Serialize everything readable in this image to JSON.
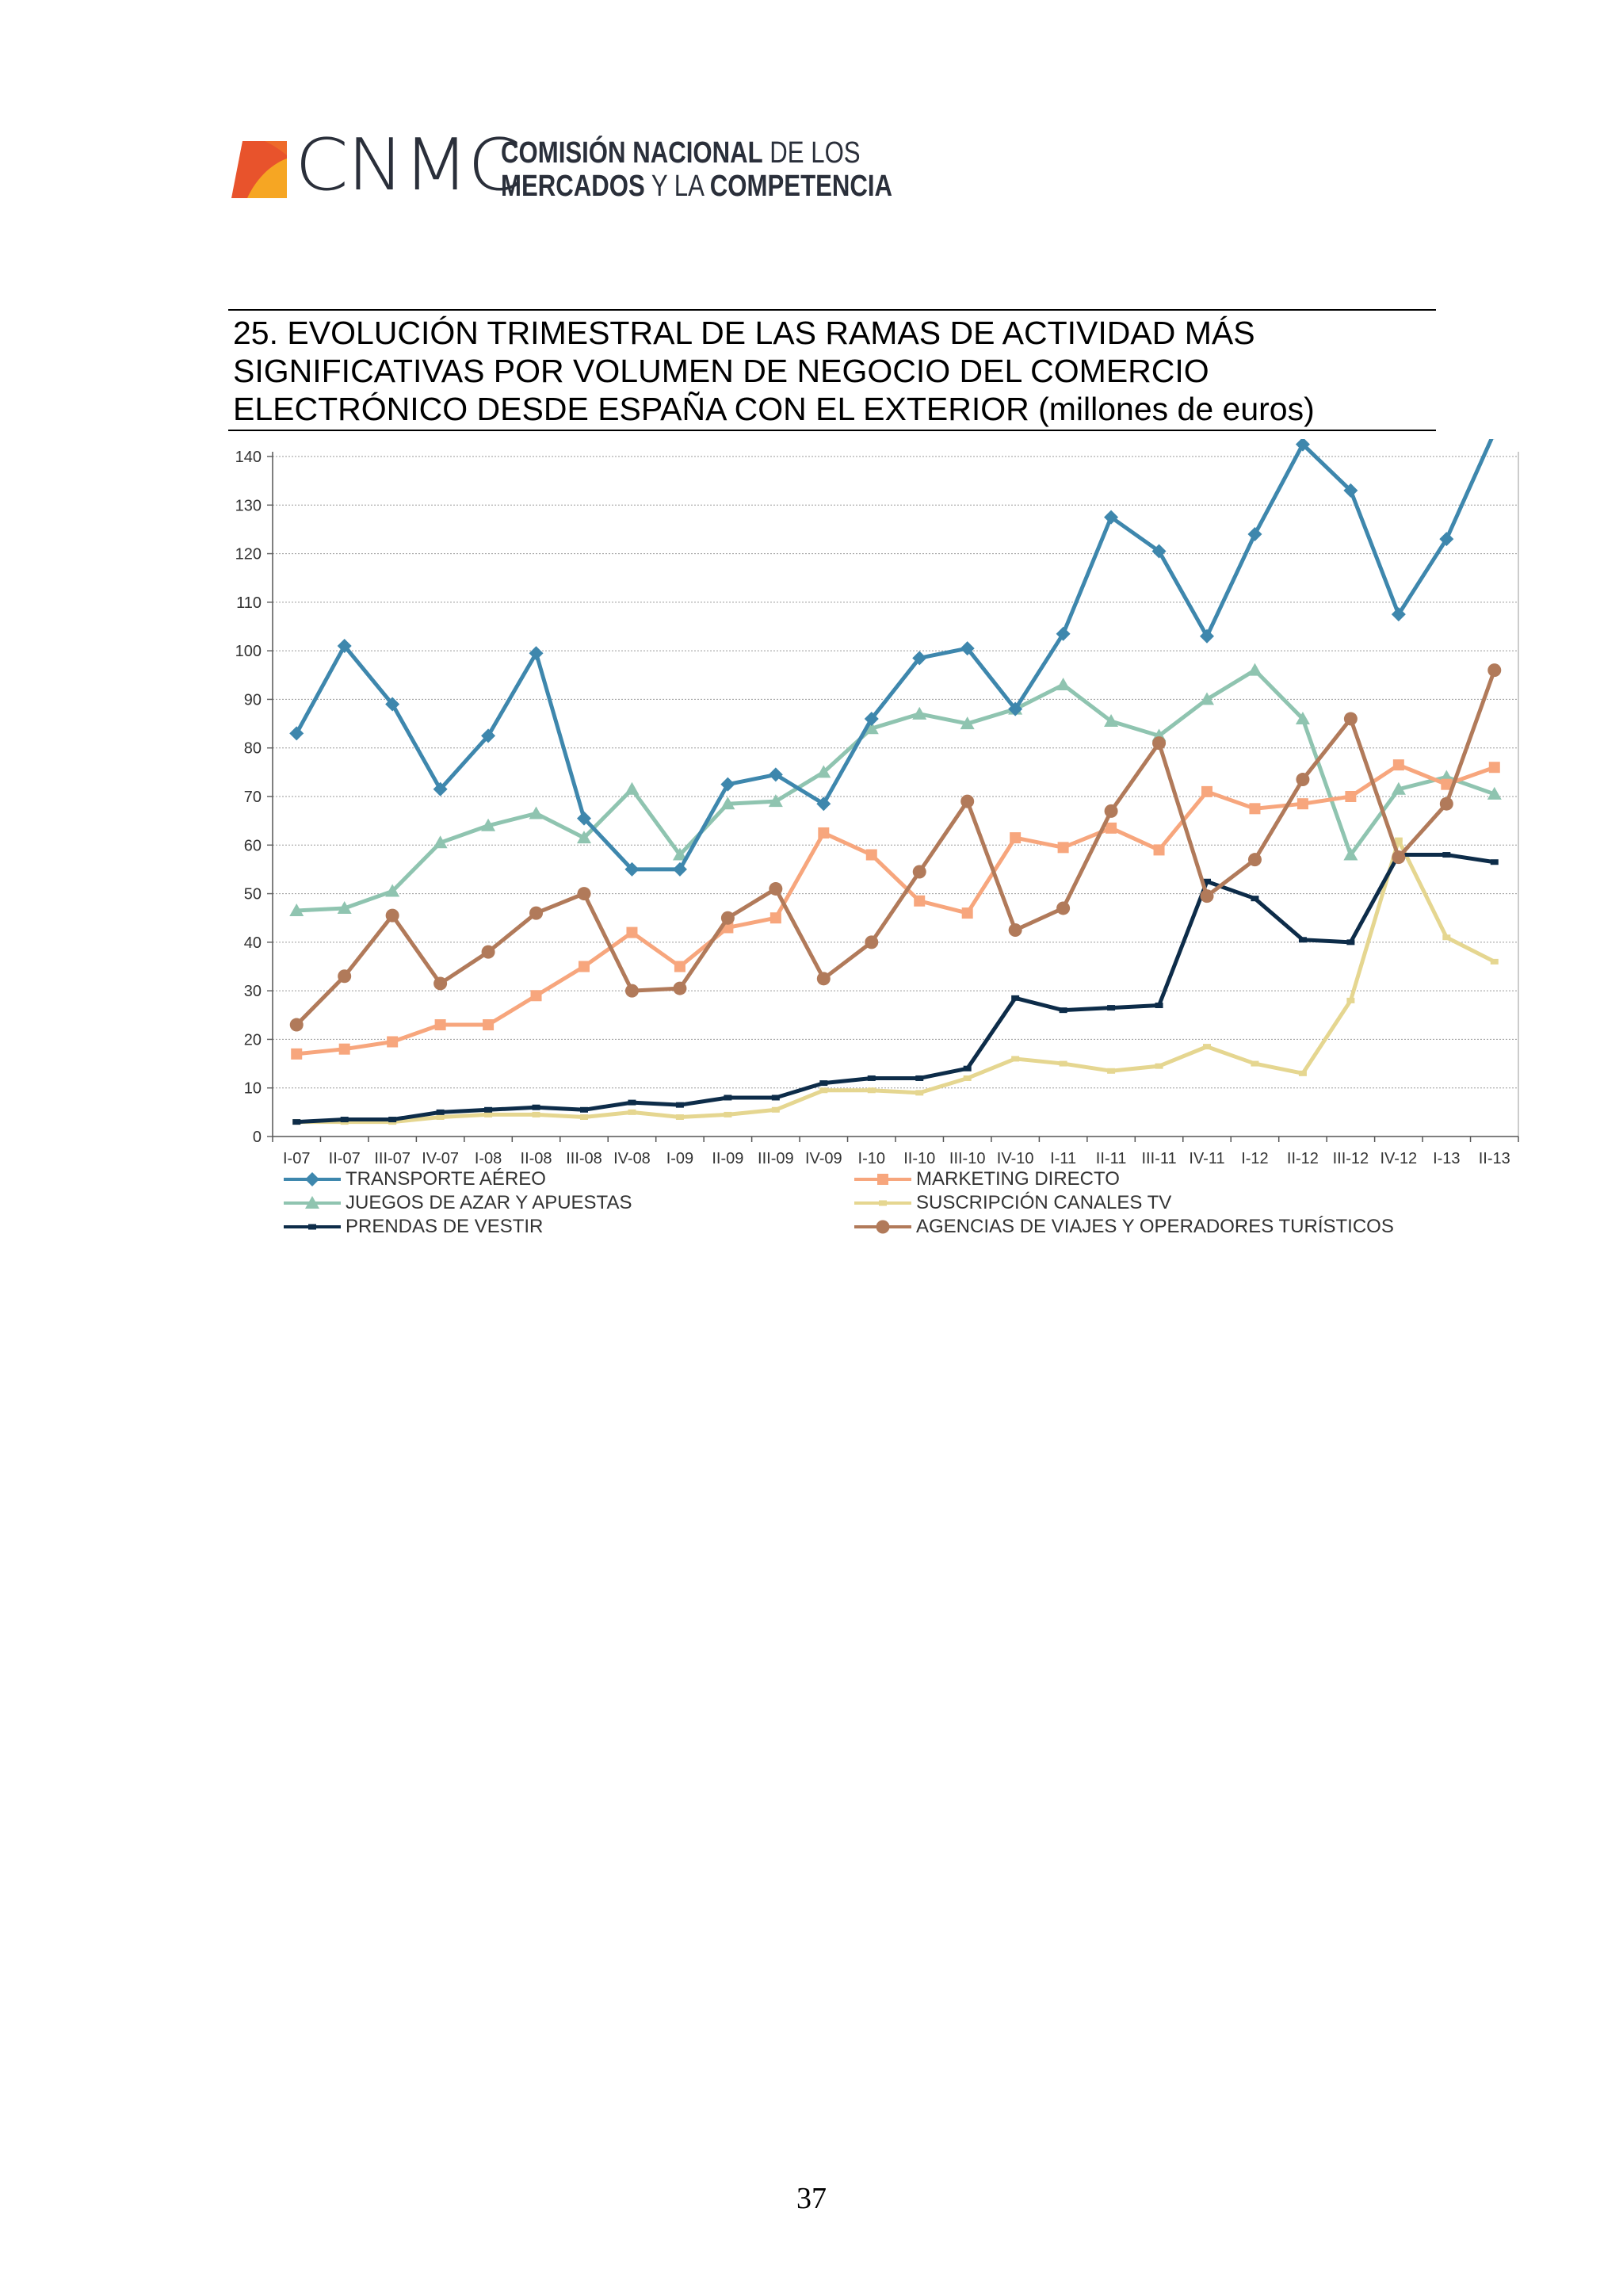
{
  "header": {
    "logo_text": "CNMC",
    "org_line1_bold": "COMISIÓN NACIONAL",
    "org_line1_rest": " DE LOS",
    "org_line2_bold": "MERCADOS",
    "org_line2_mid": " Y LA ",
    "org_line2_bold2": "COMPETENCIA"
  },
  "figure": {
    "title_lines": [
      "25. EVOLUCIÓN TRIMESTRAL DE LAS RAMAS DE ACTIVIDAD MÁS",
      "SIGNIFICATIVAS POR VOLUMEN DE NEGOCIO DEL COMERCIO",
      "ELECTRÓNICO DESDE ESPAÑA CON EL EXTERIOR (millones de euros)"
    ]
  },
  "chart_data": {
    "type": "line",
    "title": "25. EVOLUCIÓN TRIMESTRAL DE LAS RAMAS DE ACTIVIDAD MÁS SIGNIFICATIVAS POR VOLUMEN DE NEGOCIO DEL COMERCIO ELECTRÓNICO DESDE ESPAÑA CON EL EXTERIOR (millones de euros)",
    "xlabel": "",
    "ylabel": "",
    "ylim": [
      0,
      140
    ],
    "yticks": [
      0,
      10,
      20,
      30,
      40,
      50,
      60,
      70,
      80,
      90,
      100,
      110,
      120,
      130,
      140
    ],
    "grid": true,
    "legend_position": "bottom",
    "categories": [
      "I-07",
      "II-07",
      "III-07",
      "IV-07",
      "I-08",
      "II-08",
      "III-08",
      "IV-08",
      "I-09",
      "II-09",
      "III-09",
      "IV-09",
      "I-10",
      "II-10",
      "III-10",
      "IV-10",
      "I-11",
      "II-11",
      "III-11",
      "IV-11",
      "I-12",
      "II-12",
      "III-12",
      "IV-12",
      "I-13",
      "II-13"
    ],
    "series": [
      {
        "name": "TRANSPORTE AÉREO",
        "color": "#3e87ad",
        "marker": "diamond",
        "values": [
          83,
          101,
          89,
          71.5,
          82.5,
          99.5,
          65.5,
          55,
          55,
          72.5,
          74.5,
          68.5,
          86,
          98.5,
          100.5,
          88,
          103.5,
          127.5,
          120.5,
          103,
          124,
          142.5,
          133,
          107.5,
          123,
          145
        ]
      },
      {
        "name": "MARKETING DIRECTO",
        "color": "#f7a67d",
        "marker": "square",
        "values": [
          17,
          18,
          19.5,
          23,
          23,
          29,
          35,
          42,
          35,
          43,
          45,
          62.5,
          58,
          48.5,
          46,
          61.5,
          59.5,
          63.5,
          59,
          71,
          67.5,
          68.5,
          70,
          76.5,
          72.5,
          76
        ]
      },
      {
        "name": "JUEGOS DE AZAR Y APUESTAS",
        "color": "#8fc4b0",
        "marker": "triangle",
        "values": [
          46.5,
          47,
          50.5,
          60.5,
          64,
          66.5,
          61.5,
          71.5,
          58,
          68.5,
          69,
          75,
          84,
          87,
          85,
          88,
          93,
          85.5,
          82.5,
          90,
          96,
          86,
          58,
          71.5,
          74,
          70.5
        ]
      },
      {
        "name": "SUSCRIPCIÓN CANALES TV",
        "color": "#e5d690",
        "marker": "dash",
        "values": [
          3,
          3,
          3,
          4,
          4.5,
          4.5,
          4,
          5,
          4,
          4.5,
          5.5,
          9.5,
          9.5,
          9,
          12,
          16,
          15,
          13.5,
          14.5,
          18.5,
          15,
          13,
          28,
          61,
          41,
          36
        ]
      },
      {
        "name": "PRENDAS DE VESTIR",
        "color": "#0d2c49",
        "marker": "dash",
        "values": [
          3,
          3.5,
          3.5,
          5,
          5.5,
          6,
          5.5,
          7,
          6.5,
          8,
          8,
          11,
          12,
          12,
          14,
          28.5,
          26,
          26.5,
          27,
          52.5,
          49,
          40.5,
          40,
          58,
          58,
          56.5
        ]
      },
      {
        "name": "AGENCIAS DE VIAJES Y OPERADORES TURÍSTICOS",
        "color": "#b17a5a",
        "marker": "circle",
        "values": [
          23,
          33,
          45.5,
          31.5,
          38,
          46,
          50,
          30,
          30.5,
          45,
          51,
          32.5,
          40,
          54.5,
          69,
          42.5,
          47,
          67,
          81,
          49.5,
          57,
          73.5,
          86,
          57.5,
          68.5,
          96
        ]
      }
    ]
  },
  "page": {
    "number": "37"
  }
}
